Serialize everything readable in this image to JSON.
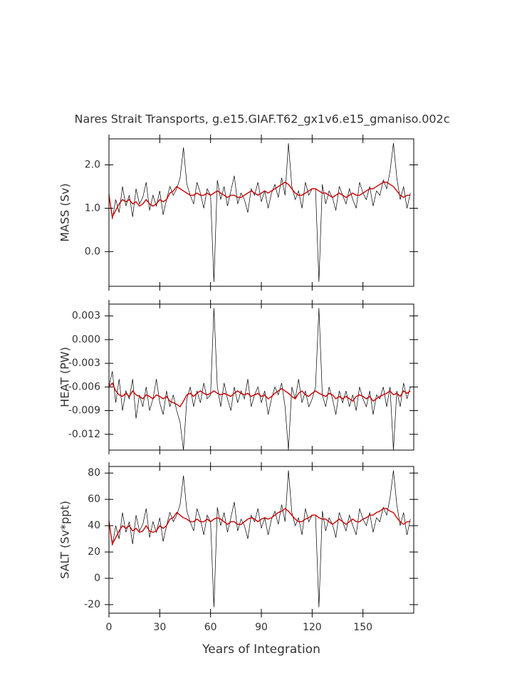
{
  "chart_data": [
    {
      "type": "line",
      "title": "Nares Strait Transports, g.e15.GIAF.T62_gx1v6.e15_gmaniso.002c",
      "ylabel": "MASS (Sv)",
      "x": [
        0,
        2,
        4,
        6,
        8,
        10,
        12,
        14,
        16,
        18,
        20,
        22,
        24,
        26,
        28,
        30,
        32,
        34,
        36,
        38,
        40,
        42,
        44,
        46,
        48,
        50,
        52,
        54,
        56,
        58,
        60,
        62,
        64,
        66,
        68,
        70,
        72,
        74,
        76,
        78,
        80,
        82,
        84,
        86,
        88,
        90,
        92,
        94,
        96,
        98,
        100,
        102,
        104,
        106,
        108,
        110,
        112,
        114,
        116,
        118,
        120,
        122,
        124,
        126,
        128,
        130,
        132,
        134,
        136,
        138,
        140,
        142,
        144,
        146,
        148,
        150,
        152,
        154,
        156,
        158,
        160,
        162,
        164,
        166,
        168,
        170,
        172,
        174,
        176,
        178
      ],
      "xlim": [
        0,
        180
      ],
      "xticks": [
        0,
        30,
        60,
        90,
        120,
        150
      ],
      "ylim": [
        -0.8,
        2.6
      ],
      "yticks": [
        {
          "value": 0,
          "label": "0.0"
        },
        {
          "value": 1,
          "label": "1.0"
        },
        {
          "value": 2,
          "label": "2.0"
        }
      ],
      "series": [
        {
          "color": "#000000",
          "values": [
            1.35,
            0.75,
            1.2,
            0.9,
            1.5,
            1.05,
            1.3,
            0.8,
            1.45,
            1.1,
            1.25,
            1.6,
            0.95,
            1.3,
            1.05,
            1.4,
            0.85,
            1.2,
            1.5,
            1.3,
            1.45,
            1.7,
            2.4,
            1.55,
            1.3,
            1.1,
            1.6,
            1.35,
            1.0,
            1.45,
            1.3,
            -0.7,
            1.65,
            1.2,
            1.5,
            1.05,
            1.4,
            1.75,
            1.1,
            1.35,
            1.2,
            0.9,
            1.45,
            1.3,
            1.6,
            1.15,
            1.4,
            1.0,
            1.35,
            1.55,
            1.25,
            1.7,
            1.3,
            2.5,
            1.5,
            1.2,
            1.4,
            1.0,
            1.6,
            1.3,
            1.45,
            1.45,
            -0.7,
            1.55,
            1.1,
            1.4,
            1.25,
            0.95,
            1.5,
            1.3,
            1.1,
            1.45,
            1.2,
            1.0,
            1.6,
            1.35,
            1.2,
            1.5,
            1.05,
            1.4,
            1.3,
            1.65,
            1.45,
            1.85,
            2.5,
            1.7,
            1.2,
            1.5,
            1.0,
            1.35
          ]
        },
        {
          "color": "#cc0000",
          "values": [
            1.3,
            0.8,
            0.95,
            1.1,
            1.2,
            1.15,
            1.2,
            1.1,
            1.15,
            1.05,
            1.1,
            1.2,
            1.1,
            1.05,
            1.1,
            1.2,
            1.15,
            1.2,
            1.35,
            1.4,
            1.5,
            1.45,
            1.4,
            1.35,
            1.3,
            1.3,
            1.35,
            1.3,
            1.3,
            1.35,
            1.3,
            1.35,
            1.4,
            1.35,
            1.3,
            1.25,
            1.3,
            1.3,
            1.25,
            1.25,
            1.3,
            1.35,
            1.4,
            1.35,
            1.3,
            1.35,
            1.4,
            1.35,
            1.4,
            1.45,
            1.5,
            1.55,
            1.6,
            1.55,
            1.45,
            1.35,
            1.3,
            1.3,
            1.35,
            1.4,
            1.45,
            1.45,
            1.4,
            1.35,
            1.35,
            1.3,
            1.25,
            1.3,
            1.35,
            1.3,
            1.25,
            1.3,
            1.35,
            1.3,
            1.3,
            1.35,
            1.4,
            1.45,
            1.45,
            1.5,
            1.55,
            1.6,
            1.6,
            1.55,
            1.5,
            1.4,
            1.3,
            1.25,
            1.3,
            1.3
          ]
        }
      ]
    },
    {
      "type": "line",
      "ylabel": "HEAT (PW)",
      "x": [
        0,
        2,
        4,
        6,
        8,
        10,
        12,
        14,
        16,
        18,
        20,
        22,
        24,
        26,
        28,
        30,
        32,
        34,
        36,
        38,
        40,
        42,
        44,
        46,
        48,
        50,
        52,
        54,
        56,
        58,
        60,
        62,
        64,
        66,
        68,
        70,
        72,
        74,
        76,
        78,
        80,
        82,
        84,
        86,
        88,
        90,
        92,
        94,
        96,
        98,
        100,
        102,
        104,
        106,
        108,
        110,
        112,
        114,
        116,
        118,
        120,
        122,
        124,
        126,
        128,
        130,
        132,
        134,
        136,
        138,
        140,
        142,
        144,
        146,
        148,
        150,
        152,
        154,
        156,
        158,
        160,
        162,
        164,
        166,
        168,
        170,
        172,
        174,
        176,
        178
      ],
      "xlim": [
        0,
        180
      ],
      "xticks": [
        0,
        30,
        60,
        90,
        120,
        150
      ],
      "ylim": [
        -0.014,
        0.0045
      ],
      "yticks": [
        -0.012,
        -0.009,
        -0.006,
        -0.003,
        {
          "value": 0,
          "label": "0.000"
        },
        0.003
      ],
      "series": [
        {
          "color": "#000000",
          "values": [
            -0.006,
            -0.004,
            -0.008,
            -0.005,
            -0.009,
            -0.0065,
            -0.0075,
            -0.005,
            -0.01,
            -0.007,
            -0.0085,
            -0.006,
            -0.009,
            -0.0075,
            -0.005,
            -0.008,
            -0.0095,
            -0.0065,
            -0.0085,
            -0.007,
            -0.009,
            -0.0105,
            -0.014,
            -0.0075,
            -0.006,
            -0.0085,
            -0.0065,
            -0.008,
            -0.0055,
            -0.0075,
            -0.007,
            0.004,
            -0.006,
            -0.0085,
            -0.0055,
            -0.0075,
            -0.009,
            -0.006,
            -0.008,
            -0.0065,
            -0.0075,
            -0.005,
            -0.0085,
            -0.007,
            -0.006,
            -0.008,
            -0.0065,
            -0.0095,
            -0.0075,
            -0.006,
            -0.007,
            -0.0055,
            -0.0085,
            -0.014,
            -0.006,
            -0.0075,
            -0.005,
            -0.008,
            -0.0065,
            -0.0085,
            -0.0075,
            -0.006,
            0.004,
            -0.007,
            -0.0085,
            -0.006,
            -0.0075,
            -0.0095,
            -0.0065,
            -0.008,
            -0.0065,
            -0.0085,
            -0.007,
            -0.009,
            -0.006,
            -0.0075,
            -0.0085,
            -0.0065,
            -0.0095,
            -0.007,
            -0.0075,
            -0.006,
            -0.0085,
            -0.006,
            -0.014,
            -0.0065,
            -0.0085,
            -0.0055,
            -0.0075,
            -0.006
          ]
        },
        {
          "color": "#cc0000",
          "values": [
            -0.006,
            -0.0055,
            -0.0065,
            -0.007,
            -0.0072,
            -0.0068,
            -0.0072,
            -0.0065,
            -0.007,
            -0.0072,
            -0.0075,
            -0.007,
            -0.0072,
            -0.0075,
            -0.007,
            -0.0072,
            -0.0075,
            -0.0072,
            -0.0078,
            -0.008,
            -0.0082,
            -0.0085,
            -0.0078,
            -0.007,
            -0.0068,
            -0.0072,
            -0.0068,
            -0.0065,
            -0.0068,
            -0.007,
            -0.0068,
            -0.0065,
            -0.0068,
            -0.007,
            -0.0068,
            -0.007,
            -0.0072,
            -0.0068,
            -0.0065,
            -0.0068,
            -0.007,
            -0.0068,
            -0.0072,
            -0.007,
            -0.0068,
            -0.0072,
            -0.007,
            -0.0075,
            -0.0072,
            -0.0068,
            -0.0065,
            -0.0062,
            -0.0065,
            -0.0068,
            -0.0072,
            -0.0075,
            -0.0068,
            -0.0065,
            -0.007,
            -0.0072,
            -0.0068,
            -0.0065,
            -0.0068,
            -0.007,
            -0.0072,
            -0.0068,
            -0.007,
            -0.0075,
            -0.0072,
            -0.0075,
            -0.0072,
            -0.0075,
            -0.0078,
            -0.0072,
            -0.007,
            -0.0072,
            -0.0075,
            -0.0072,
            -0.0078,
            -0.0075,
            -0.0072,
            -0.007,
            -0.0068,
            -0.0065,
            -0.007,
            -0.0068,
            -0.0072,
            -0.0065,
            -0.0068,
            -0.0065
          ]
        }
      ]
    },
    {
      "type": "line",
      "ylabel": "SALT (Sv*ppt)",
      "xlabel": "Years of Integration",
      "x": [
        0,
        2,
        4,
        6,
        8,
        10,
        12,
        14,
        16,
        18,
        20,
        22,
        24,
        26,
        28,
        30,
        32,
        34,
        36,
        38,
        40,
        42,
        44,
        46,
        48,
        50,
        52,
        54,
        56,
        58,
        60,
        62,
        64,
        66,
        68,
        70,
        72,
        74,
        76,
        78,
        80,
        82,
        84,
        86,
        88,
        90,
        92,
        94,
        96,
        98,
        100,
        102,
        104,
        106,
        108,
        110,
        112,
        114,
        116,
        118,
        120,
        122,
        124,
        126,
        128,
        130,
        132,
        134,
        136,
        138,
        140,
        142,
        144,
        146,
        148,
        150,
        152,
        154,
        156,
        158,
        160,
        162,
        164,
        166,
        168,
        170,
        172,
        174,
        176,
        178
      ],
      "xlim": [
        0,
        180
      ],
      "xticks": [
        0,
        30,
        60,
        90,
        120,
        150
      ],
      "ylim": [
        -26.5,
        85
      ],
      "yticks": [
        -20,
        0,
        20,
        40,
        60,
        80
      ],
      "series": [
        {
          "color": "#000000",
          "values": [
            45,
            25,
            40,
            30,
            50,
            35,
            43,
            26,
            48,
            36,
            41,
            53,
            31,
            43,
            35,
            46,
            28,
            40,
            50,
            43,
            48,
            56,
            78,
            51,
            43,
            36,
            53,
            45,
            33,
            48,
            43,
            -22,
            54,
            40,
            50,
            35,
            46,
            58,
            36,
            45,
            40,
            30,
            48,
            43,
            53,
            38,
            46,
            33,
            45,
            51,
            41,
            56,
            43,
            82,
            50,
            40,
            46,
            33,
            53,
            43,
            48,
            48,
            -22,
            51,
            36,
            46,
            41,
            31,
            50,
            43,
            36,
            48,
            40,
            33,
            53,
            45,
            40,
            50,
            35,
            46,
            43,
            54,
            48,
            61,
            82,
            56,
            40,
            50,
            33,
            45
          ]
        },
        {
          "color": "#cc0000",
          "values": [
            43,
            26,
            31,
            36,
            40,
            38,
            40,
            36,
            38,
            35,
            36,
            40,
            36,
            35,
            36,
            40,
            38,
            40,
            45,
            46,
            50,
            48,
            46,
            45,
            43,
            43,
            45,
            43,
            43,
            45,
            43,
            45,
            46,
            45,
            43,
            41,
            43,
            43,
            41,
            41,
            43,
            45,
            46,
            45,
            43,
            45,
            46,
            45,
            46,
            48,
            50,
            51,
            53,
            51,
            48,
            45,
            43,
            43,
            45,
            46,
            48,
            48,
            46,
            45,
            45,
            43,
            41,
            43,
            45,
            43,
            41,
            43,
            45,
            43,
            43,
            45,
            46,
            48,
            48,
            50,
            51,
            53,
            53,
            51,
            50,
            46,
            43,
            41,
            43,
            43
          ]
        }
      ]
    }
  ]
}
